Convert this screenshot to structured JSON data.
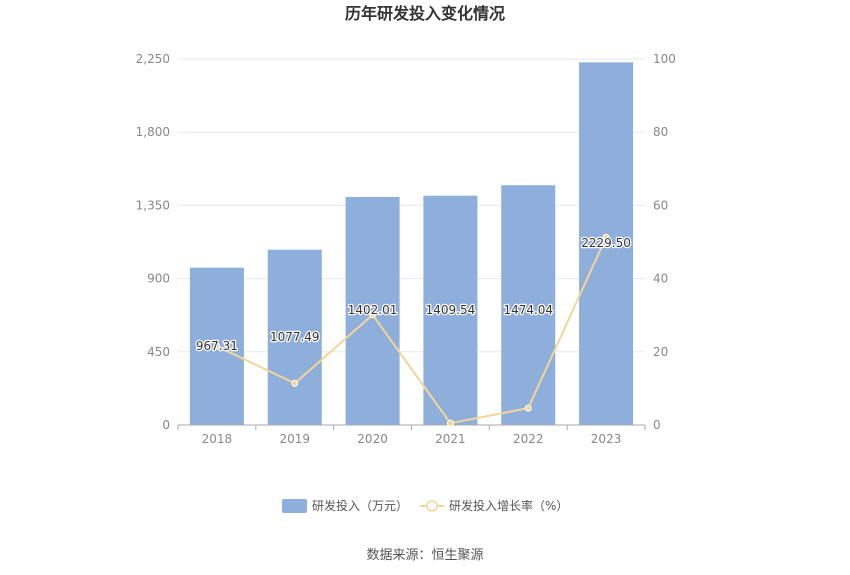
{
  "chart_data": {
    "type": "bar",
    "title": "历年研发投入变化情况",
    "categories": [
      "2018",
      "2019",
      "2020",
      "2021",
      "2022",
      "2023"
    ],
    "series": [
      {
        "name": "研发投入（万元）",
        "type": "bar",
        "axis": "left",
        "color": "#8eaedb",
        "values": [
          967.31,
          1077.49,
          1402.01,
          1409.54,
          1474.04,
          2229.5
        ],
        "labels": [
          "967.31",
          "1077.49",
          "1402.01",
          "1409.54",
          "1474.04",
          "2229.50"
        ]
      },
      {
        "name": "研发投入增长率（%）",
        "type": "line",
        "axis": "right",
        "color": "#f5d596",
        "values": [
          21.5,
          11.4,
          30.1,
          0.5,
          4.6,
          51.3
        ]
      }
    ],
    "y_left": {
      "ticks": [
        "0",
        "450",
        "900",
        "1,350",
        "1,800",
        "2,250"
      ],
      "lim": [
        0,
        2250
      ]
    },
    "y_right": {
      "ticks": [
        "0",
        "20",
        "40",
        "60",
        "80",
        "100"
      ],
      "lim": [
        0,
        100
      ]
    },
    "grid": true,
    "legend_position": "bottom"
  },
  "source_text": "数据来源：恒生聚源"
}
